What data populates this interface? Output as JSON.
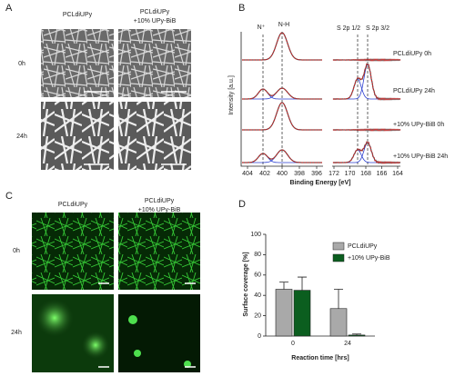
{
  "figure": {
    "panel_labels": [
      "A",
      "B",
      "C"
    ]
  },
  "panel_a": {
    "columns": [
      "PCLdiUPy",
      "PCLdiUPy",
      "+10% UPy-BiB"
    ],
    "rows": [
      "0h",
      "24h"
    ]
  },
  "panel_b": {
    "y_label": "Intensity [a.u.]",
    "x_label": "Binding Energy [eV]",
    "peaks": [
      "N⁺",
      "N-H",
      "S 2p 1/2",
      "S 2p 3/2"
    ],
    "left_ticks": [
      "404",
      "402",
      "400",
      "398",
      "396"
    ],
    "right_ticks": [
      "172",
      "170",
      "168",
      "166",
      "164"
    ],
    "spectra": [
      "PCLdiUPy 0h",
      "PCLdiUPy 24h",
      "+10% UPy-BiB 0h",
      "+10% UPy-BiB 24h"
    ]
  },
  "panel_c": {
    "columns": [
      "PCLdiUPy",
      "PCLdiUPy",
      "+10% UPy-BiB"
    ],
    "rows": [
      "0h",
      "24h"
    ]
  },
  "chart_data": {
    "type": "bar",
    "panel_label": "D",
    "y_label": "Surface coverage [%]",
    "x_label": "Reaction time [hrs]",
    "categories": [
      "0",
      "24"
    ],
    "series": [
      {
        "name": "PCLdiUPy",
        "color": "#a9a9a9",
        "values": [
          46,
          27
        ],
        "errors": [
          7,
          19
        ]
      },
      {
        "name": "+10% UPy-BiB",
        "color": "#0b5e1f",
        "values": [
          45,
          1
        ],
        "errors": [
          13,
          1
        ]
      }
    ],
    "ylim": [
      0,
      100
    ],
    "yticks": [
      0,
      20,
      40,
      60,
      80,
      100
    ]
  }
}
